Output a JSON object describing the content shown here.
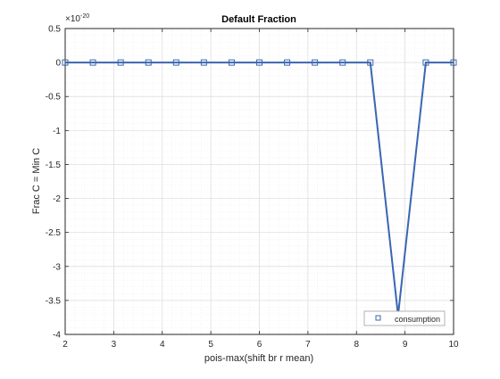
{
  "chart_data": {
    "type": "line",
    "title": "Default Fraction",
    "xlabel": "pois-max(shift br r mean)",
    "ylabel": "Frac C = Min C",
    "y_exponent_label": "×10",
    "y_exponent_power": "-20",
    "xlim": [
      2,
      10
    ],
    "ylim": [
      -4,
      0.5
    ],
    "x_ticks": [
      2,
      3,
      4,
      5,
      6,
      7,
      8,
      9,
      10
    ],
    "x_tick_labels": [
      "2",
      "3",
      "4",
      "5",
      "6",
      "7",
      "8",
      "9",
      "10"
    ],
    "y_ticks": [
      0.5,
      0,
      -0.5,
      -1,
      -1.5,
      -2,
      -2.5,
      -3,
      -3.5,
      -4
    ],
    "y_tick_labels": [
      "0.5",
      "0",
      "-0.5",
      "-1",
      "-1.5",
      "-2",
      "-2.5",
      "-3",
      "-3.5",
      "-4"
    ],
    "grid": true,
    "minor_grid": true,
    "legend_position": "bottom-right",
    "series": [
      {
        "name": "consumption",
        "color": "#3a66b0",
        "marker": "square",
        "x": [
          2,
          2.5714,
          3.1429,
          3.7143,
          4.2857,
          4.8571,
          5.4286,
          6,
          6.5714,
          7.1429,
          7.7143,
          8.2857,
          8.8571,
          9.4286,
          10
        ],
        "y": [
          0,
          0,
          0,
          0,
          0,
          0,
          0,
          0,
          0,
          0,
          0,
          0,
          -3.72,
          0,
          0
        ]
      }
    ]
  }
}
